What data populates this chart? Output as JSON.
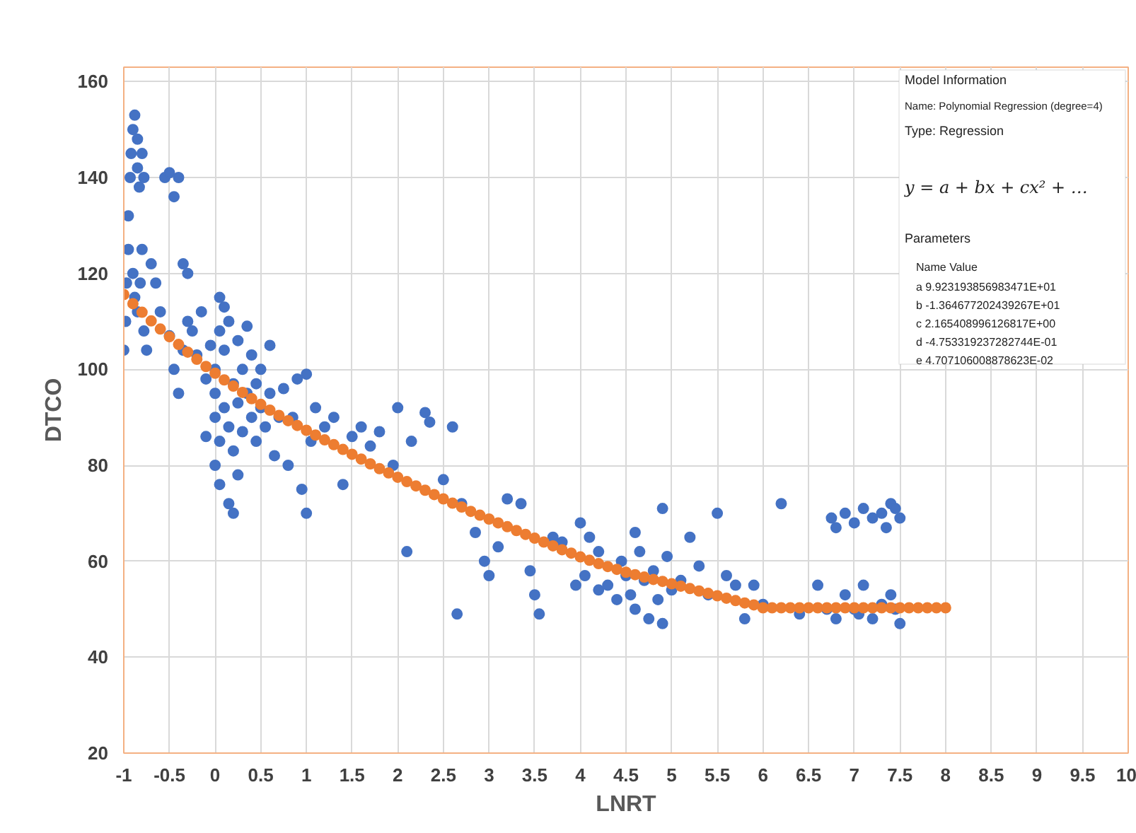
{
  "chart_data": {
    "type": "scatter",
    "xlabel": "LNRT",
    "ylabel": "DTCO",
    "xlim": [
      -1,
      10
    ],
    "ylim": [
      20,
      163
    ],
    "xticks": [
      -1,
      -0.5,
      0,
      0.5,
      1,
      1.5,
      2,
      2.5,
      3,
      3.5,
      4,
      4.5,
      5,
      5.5,
      6,
      6.5,
      7,
      7.5,
      8,
      8.5,
      9,
      9.5,
      10
    ],
    "yticks": [
      20,
      40,
      60,
      80,
      100,
      120,
      140,
      160
    ],
    "grid": true,
    "marker": "circle",
    "annotations": [
      "Model Information",
      "Name: Polynomial Regression (degree=4)",
      "Type: Regression",
      "y = a + bx + cx² + …",
      "Parameters",
      "Name   Value",
      "a   9.923193856983471E+01",
      "b   -1.364677202439267E+01",
      "c   2.165408996126817E+00",
      "d   -4.753319237282744E-01",
      "e   4.707106008878623E-02"
    ],
    "series": [
      {
        "color": "#4472c4",
        "x": [
          -1,
          -0.98,
          -0.97,
          -0.95,
          -0.95,
          -0.93,
          -0.92,
          -0.9,
          -0.88,
          -0.85,
          -0.85,
          -0.83,
          -0.8,
          -0.78,
          -0.9,
          -0.88,
          -0.85,
          -0.82,
          -0.8,
          -0.78,
          -0.75,
          -0.7,
          -0.65,
          -0.6,
          -0.55,
          -0.5,
          -0.45,
          -0.4,
          -0.35,
          -0.3,
          -0.5,
          -0.45,
          -0.4,
          -0.35,
          -0.3,
          -0.25,
          -0.2,
          -0.15,
          -0.1,
          -0.05,
          0,
          0,
          0,
          0.05,
          0.05,
          0.1,
          0.1,
          0.15,
          0.15,
          0.2,
          0.2,
          0.25,
          0.25,
          0.3,
          0.3,
          0.35,
          0.35,
          0.4,
          0.4,
          0.45,
          0.45,
          0.5,
          0.5,
          0.55,
          0.6,
          0.6,
          0.65,
          0.7,
          0.75,
          0.05,
          0.1,
          0,
          0.05,
          0.15,
          0.25,
          -0.1,
          0.2,
          0.8,
          0.85,
          0.9,
          0.95,
          1,
          1,
          1.05,
          1.1,
          1.2,
          1.3,
          1.4,
          1.5,
          1.6,
          1.7,
          1.8,
          1.95,
          2,
          2.1,
          2.15,
          2.3,
          2.35,
          2.5,
          2.6,
          2.65,
          2.7,
          2.85,
          2.95,
          3,
          3.1,
          3.2,
          3.35,
          3.45,
          3.5,
          3.55,
          3.7,
          3.8,
          3.95,
          4,
          4.05,
          4.1,
          4.2,
          4.3,
          4.4,
          4.45,
          4.5,
          4.55,
          4.6,
          4.65,
          4.7,
          4.75,
          4.8,
          4.85,
          4.9,
          4.95,
          5,
          4.2,
          4.6,
          4.9,
          5.1,
          5.2,
          5.3,
          5.4,
          5.5,
          5.6,
          5.7,
          5.8,
          5.9,
          6,
          6.2,
          6.4,
          6.75,
          6.9,
          7,
          7.1,
          7.2,
          7.3,
          7.4,
          7.5,
          6.8,
          7.35,
          7.45,
          6.7,
          6.8,
          6.9,
          7,
          7.1,
          7.2,
          7.3,
          7.4,
          7.5,
          6.6,
          7.05,
          7.45
        ],
        "values": [
          104,
          110,
          118,
          125,
          132,
          140,
          145,
          150,
          153,
          148,
          142,
          138,
          145,
          140,
          120,
          115,
          112,
          118,
          125,
          108,
          104,
          122,
          118,
          112,
          140,
          141,
          136,
          140,
          122,
          120,
          107,
          100,
          95,
          104,
          110,
          108,
          103,
          112,
          98,
          105,
          90,
          95,
          100,
          108,
          85,
          92,
          104,
          110,
          88,
          97,
          83,
          106,
          93,
          100,
          87,
          109,
          95,
          90,
          103,
          85,
          97,
          92,
          100,
          88,
          95,
          105,
          82,
          90,
          96,
          115,
          113,
          80,
          76,
          72,
          78,
          86,
          70,
          80,
          90,
          98,
          75,
          99,
          70,
          85,
          92,
          88,
          90,
          76,
          86,
          88,
          84,
          87,
          80,
          92,
          62,
          85,
          91,
          89,
          77,
          88,
          49,
          72,
          66,
          60,
          57,
          63,
          73,
          72,
          58,
          53,
          49,
          65,
          64,
          55,
          68,
          57,
          65,
          54,
          55,
          52,
          60,
          57,
          53,
          50,
          62,
          56,
          48,
          58,
          52,
          47,
          61,
          54,
          62,
          66,
          71,
          56,
          65,
          59,
          53,
          70,
          57,
          55,
          48,
          55,
          51,
          72,
          49,
          69,
          70,
          68,
          71,
          69,
          70,
          72,
          69,
          67,
          67,
          71,
          50,
          48,
          53,
          50,
          55,
          48,
          51,
          53,
          47,
          55,
          49,
          50
        ]
      },
      {
        "color": "#ed7d31",
        "x": [
          -1,
          -0.9,
          -0.8,
          -0.7,
          -0.6,
          -0.5,
          -0.4,
          -0.3,
          -0.2,
          -0.1,
          0,
          0.1,
          0.2,
          0.3,
          0.4,
          0.5,
          0.6,
          0.7,
          0.8,
          0.9,
          1,
          1.1,
          1.2,
          1.3,
          1.4,
          1.5,
          1.6,
          1.7,
          1.8,
          1.9,
          2,
          2.1,
          2.2,
          2.3,
          2.4,
          2.5,
          2.6,
          2.7,
          2.8,
          2.9,
          3,
          3.1,
          3.2,
          3.3,
          3.4,
          3.5,
          3.6,
          3.7,
          3.8,
          3.9,
          4,
          4.1,
          4.2,
          4.3,
          4.4,
          4.5,
          4.6,
          4.7,
          4.8,
          4.9,
          5,
          5.1,
          5.2,
          5.3,
          5.4,
          5.5,
          5.6,
          5.7,
          5.8,
          5.9,
          6,
          6.1,
          6.2,
          6.3,
          6.4,
          6.5,
          6.6,
          6.7,
          6.8,
          6.9,
          7,
          7.1,
          7.2,
          7.3,
          7.4,
          7.5,
          7.6,
          7.7,
          7.8,
          7.9,
          8
        ],
        "values": [
          115.6,
          113.7,
          111.9,
          110.1,
          108.4,
          106.8,
          105.2,
          103.6,
          102.1,
          100.6,
          99.2,
          97.8,
          96.5,
          95.2,
          93.9,
          92.7,
          91.5,
          90.4,
          89.3,
          88.3,
          87.3,
          86.3,
          85.3,
          84.3,
          83.3,
          82.3,
          81.3,
          80.3,
          79.3,
          78.4,
          77.5,
          76.6,
          75.7,
          74.8,
          73.9,
          73,
          72.1,
          71.3,
          70.4,
          69.6,
          68.8,
          68,
          67.2,
          66.4,
          65.6,
          64.8,
          64,
          63.2,
          62.4,
          61.7,
          60.9,
          60.2,
          59.5,
          58.9,
          58.3,
          57.7,
          57.2,
          56.7,
          56.2,
          55.8,
          55.3,
          54.8,
          54.3,
          53.8,
          53.3,
          52.8,
          52.3,
          51.8,
          51.3,
          50.9,
          50.3,
          50.3,
          50.3,
          50.3,
          50.3,
          50.3,
          50.3,
          50.3,
          50.3,
          50.3,
          50.3,
          50.3,
          50.3,
          50.3,
          50.3,
          50.3,
          50.3,
          50.3,
          50.3,
          50.3,
          50.3
        ]
      }
    ]
  }
}
